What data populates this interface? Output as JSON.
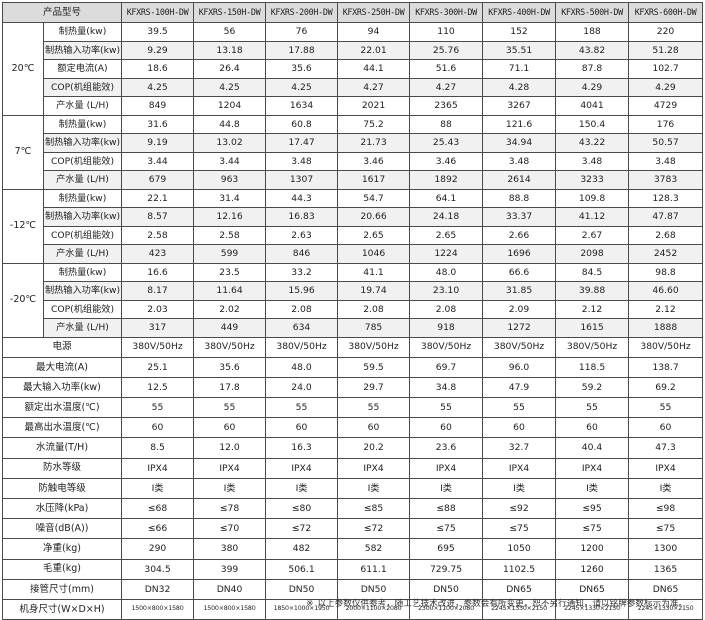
{
  "header": {
    "corner": "产品型号",
    "models": [
      "KFXRS-100H-DW",
      "KFXRS-150H-DW",
      "KFXRS-200H-DW",
      "KFXRS-250H-DW",
      "KFXRS-300H-DW",
      "KFXRS-400H-DW",
      "KFXRS-500H-DW",
      "KFXRS-600H-DW"
    ]
  },
  "conditions": [
    {
      "temp": "20℃",
      "rows": [
        {
          "param": "制热量(kw)",
          "values": [
            "39.5",
            "56",
            "76",
            "94",
            "110",
            "152",
            "188",
            "220"
          ]
        },
        {
          "param": "制热输入功率(kw)",
          "values": [
            "9.29",
            "13.18",
            "17.88",
            "22.01",
            "25.76",
            "35.51",
            "43.82",
            "51.28"
          ]
        },
        {
          "param": "额定电流(A)",
          "values": [
            "18.6",
            "26.4",
            "35.6",
            "44.1",
            "51.6",
            "71.1",
            "87.8",
            "102.7"
          ]
        },
        {
          "param": "COP(机组能效)",
          "values": [
            "4.25",
            "4.25",
            "4.25",
            "4.27",
            "4.27",
            "4.28",
            "4.29",
            "4.29"
          ]
        },
        {
          "param": "产水量 (L/H)",
          "values": [
            "849",
            "1204",
            "1634",
            "2021",
            "2365",
            "3267",
            "4041",
            "4729"
          ]
        }
      ]
    },
    {
      "temp": "7℃",
      "rows": [
        {
          "param": "制热量(kw)",
          "values": [
            "31.6",
            "44.8",
            "60.8",
            "75.2",
            "88",
            "121.6",
            "150.4",
            "176"
          ]
        },
        {
          "param": "制热输入功率(kw)",
          "values": [
            "9.19",
            "13.02",
            "17.47",
            "21.73",
            "25.43",
            "34.94",
            "43.22",
            "50.57"
          ]
        },
        {
          "param": "COP(机组能效)",
          "values": [
            "3.44",
            "3.44",
            "3.48",
            "3.46",
            "3.46",
            "3.48",
            "3.48",
            "3.48"
          ]
        },
        {
          "param": "产水量 (L/H)",
          "values": [
            "679",
            "963",
            "1307",
            "1617",
            "1892",
            "2614",
            "3233",
            "3783"
          ]
        }
      ]
    },
    {
      "temp": "-12℃",
      "rows": [
        {
          "param": "制热量(kw)",
          "values": [
            "22.1",
            "31.4",
            "44.3",
            "54.7",
            "64.1",
            "88.8",
            "109.8",
            "128.3"
          ]
        },
        {
          "param": "制热输入功率(kw)",
          "values": [
            "8.57",
            "12.16",
            "16.83",
            "20.66",
            "24.18",
            "33.37",
            "41.12",
            "47.87"
          ]
        },
        {
          "param": "COP(机组能效)",
          "values": [
            "2.58",
            "2.58",
            "2.63",
            "2.65",
            "2.65",
            "2.66",
            "2.67",
            "2.68"
          ]
        },
        {
          "param": "产水量 (L/H)",
          "values": [
            "423",
            "599",
            "846",
            "1046",
            "1224",
            "1696",
            "2098",
            "2452"
          ]
        }
      ]
    },
    {
      "temp": "-20℃",
      "rows": [
        {
          "param": "制热量(kw)",
          "values": [
            "16.6",
            "23.5",
            "33.2",
            "41.1",
            "48.0",
            "66.6",
            "84.5",
            "98.8"
          ]
        },
        {
          "param": "制热输入功率(kw)",
          "values": [
            "8.17",
            "11.64",
            "15.96",
            "19.74",
            "23.10",
            "31.85",
            "39.88",
            "46.60"
          ]
        },
        {
          "param": "COP(机组能效)",
          "values": [
            "2.03",
            "2.02",
            "2.08",
            "2.08",
            "2.08",
            "2.09",
            "2.12",
            "2.12"
          ]
        },
        {
          "param": "产水量 (L/H)",
          "values": [
            "317",
            "449",
            "634",
            "785",
            "918",
            "1272",
            "1615",
            "1888"
          ]
        }
      ]
    }
  ],
  "general": [
    {
      "param": "电源",
      "values": [
        "380V/50Hz",
        "380V/50Hz",
        "380V/50Hz",
        "380V/50Hz",
        "380V/50Hz",
        "380V/50Hz",
        "380V/50Hz",
        "380V/50Hz"
      ]
    },
    {
      "param": "最大电流(A)",
      "values": [
        "25.1",
        "35.6",
        "48.0",
        "59.5",
        "69.7",
        "96.0",
        "118.5",
        "138.7"
      ]
    },
    {
      "param": "最大输入功率(kw)",
      "values": [
        "12.5",
        "17.8",
        "24.0",
        "29.7",
        "34.8",
        "47.9",
        "59.2",
        "69.2"
      ]
    },
    {
      "param": "额定出水温度(℃)",
      "values": [
        "55",
        "55",
        "55",
        "55",
        "55",
        "55",
        "55",
        "55"
      ]
    },
    {
      "param": "最高出水温度(℃)",
      "values": [
        "60",
        "60",
        "60",
        "60",
        "60",
        "60",
        "60",
        "60"
      ]
    },
    {
      "param": "水流量(T/H)",
      "values": [
        "8.5",
        "12.0",
        "16.3",
        "20.2",
        "23.6",
        "32.7",
        "40.4",
        "47.3"
      ]
    },
    {
      "param": "防水等级",
      "values": [
        "IPX4",
        "IPX4",
        "IPX4",
        "IPX4",
        "IPX4",
        "IPX4",
        "IPX4",
        "IPX4"
      ]
    },
    {
      "param": "防触电等级",
      "values": [
        "Ⅰ类",
        "Ⅰ类",
        "Ⅰ类",
        "Ⅰ类",
        "Ⅰ类",
        "Ⅰ类",
        "Ⅰ类",
        "Ⅰ类"
      ]
    },
    {
      "param": "水压降(kPa)",
      "values": [
        "≤68",
        "≤78",
        "≤80",
        "≤85",
        "≤88",
        "≤92",
        "≤95",
        "≤98"
      ]
    },
    {
      "param": "噪音(dB(A))",
      "values": [
        "≤66",
        "≤70",
        "≤72",
        "≤72",
        "≤75",
        "≤75",
        "≤75",
        "≤75"
      ]
    },
    {
      "param": "净重(kg)",
      "values": [
        "290",
        "380",
        "482",
        "582",
        "695",
        "1050",
        "1200",
        "1300"
      ]
    },
    {
      "param": "毛重(kg)",
      "values": [
        "304.5",
        "399",
        "506.1",
        "611.1",
        "729.75",
        "1102.5",
        "1260",
        "1365"
      ]
    },
    {
      "param": "接管尺寸(mm)",
      "values": [
        "DN32",
        "DN40",
        "DN50",
        "DN50",
        "DN50",
        "DN65",
        "DN65",
        "DN65"
      ]
    },
    {
      "param": "机身尺寸(W×D×H)",
      "values": [
        "1500×800×1580",
        "1500×800×1580",
        "1850×1000×1950",
        "2000×1100×2080",
        "2300×1100×2080",
        "2245×1330×2150",
        "2245×1330×2150",
        "2245×1330×2150"
      ],
      "small": true
    }
  ],
  "note": {
    "mark": "※",
    "text": "以上参数仅供参考，随工艺技术改进，参数会有所变更，恕不另行通知，请以铭牌参数标示为准。"
  }
}
